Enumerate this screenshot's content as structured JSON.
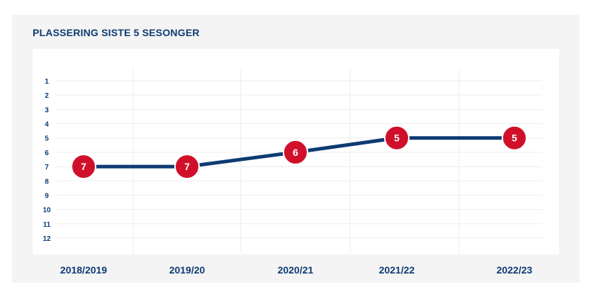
{
  "title": "PLASSERING SISTE 5 SESONGER",
  "colors": {
    "line": "#0d3b73",
    "marker": "#d0102a",
    "marker_stroke": "#ffffff",
    "text": "#0d3b73",
    "grid": "#eeeeee",
    "panel": "#f4f4f4"
  },
  "chart_data": {
    "type": "line",
    "categories": [
      "2018/2019",
      "2019/20",
      "2020/21",
      "2021/22",
      "2022/23"
    ],
    "series": [
      {
        "values": [
          7,
          7,
          6,
          5,
          5
        ]
      }
    ],
    "y_ticks": [
      "1",
      "2",
      "3",
      "4",
      "5",
      "6",
      "7",
      "8",
      "9",
      "10",
      "11",
      "12"
    ],
    "ylim": [
      1,
      12
    ],
    "y_inverted": true,
    "xlabel": "",
    "ylabel": "",
    "grid": true,
    "data_labels": true
  }
}
